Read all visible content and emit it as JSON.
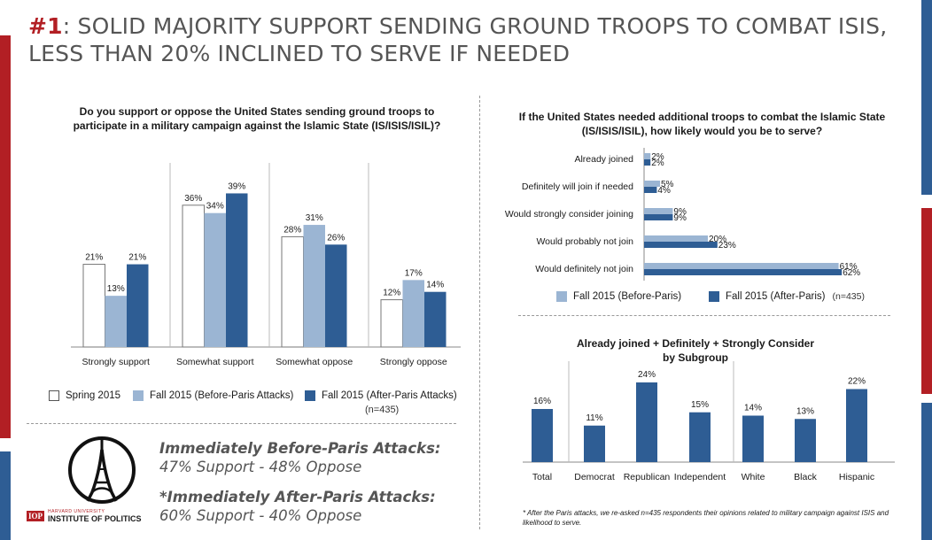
{
  "title": {
    "number": "#1",
    "text": ": SOLID MAJORITY SUPPORT SENDING GROUND TROOPS TO COMBAT ISIS, LESS THAN 20% INCLINED TO SERVE IF NEEDED"
  },
  "colors": {
    "spring": "#ffffff",
    "before": "#9bb5d3",
    "after": "#2e5d94",
    "accent_red": "#b21f24",
    "accent_blue": "#2e5d94"
  },
  "left_chart": {
    "question": "Do you support or oppose the United States sending ground troops to participate in a military campaign against the Islamic State (IS/ISIS/ISIL)?",
    "legend": {
      "spring": "Spring 2015",
      "before": "Fall 2015 (Before-Paris Attacks)",
      "after": "Fall 2015 (After-Paris Attacks)",
      "n": "(n=435)"
    }
  },
  "right_top": {
    "question": "If the United States needed additional troops to combat the Islamic State (IS/ISIS/ISIL), how likely would you be to serve?",
    "legend": {
      "before": "Fall 2015 (Before-Paris)",
      "after": "Fall 2015 (After-Paris)",
      "n": "(n=435)"
    }
  },
  "right_bottom": {
    "title_line1": "Already joined + Definitely + Strongly Consider",
    "title_line2": "by Subgroup"
  },
  "summary": {
    "before_heading": "Immediately Before-Paris Attacks:",
    "before_text": "47% Support - 48% Oppose",
    "after_heading": "*Immediately After-Paris Attacks:",
    "after_text": "60% Support - 40% Oppose"
  },
  "logo": {
    "university": "HARVARD UNIVERSITY",
    "abbr": "IOP",
    "name": "INSTITUTE OF POLITICS"
  },
  "footnote": "* After the Paris attacks, we re-asked n=435 respondents their opinions related to military campaign against ISIS and likelihood to serve.",
  "chart_data": [
    {
      "type": "bar",
      "categories": [
        "Strongly support",
        "Somewhat support",
        "Somewhat oppose",
        "Strongly oppose"
      ],
      "series": [
        {
          "name": "Spring 2015",
          "values": [
            21,
            36,
            28,
            12
          ]
        },
        {
          "name": "Fall 2015 (Before-Paris Attacks)",
          "values": [
            13,
            34,
            31,
            17
          ]
        },
        {
          "name": "Fall 2015 (After-Paris Attacks)",
          "values": [
            21,
            39,
            26,
            14
          ]
        }
      ],
      "value_labels": [
        [
          "21%",
          "36%",
          "28%",
          "12%"
        ],
        [
          "13%",
          "34%",
          "31%",
          "17%"
        ],
        [
          "21%",
          "39%",
          "26%",
          "14%"
        ]
      ],
      "ylim": [
        0,
        45
      ],
      "legend": "bottom"
    },
    {
      "type": "bar",
      "orientation": "horizontal",
      "categories": [
        "Already joined",
        "Definitely will join if needed",
        "Would strongly consider joining",
        "Would probably not join",
        "Would definitely not join"
      ],
      "series": [
        {
          "name": "Fall 2015 (Before-Paris)",
          "values": [
            2,
            5,
            9,
            20,
            61
          ]
        },
        {
          "name": "Fall 2015 (After-Paris)",
          "values": [
            2,
            4,
            9,
            23,
            62
          ]
        }
      ],
      "value_labels": [
        [
          "2%",
          "5%",
          "9%",
          "20%",
          "61%"
        ],
        [
          "2%",
          "4%",
          "9%",
          "23%",
          "62%"
        ]
      ],
      "xlim": [
        0,
        62
      ],
      "legend": "bottom"
    },
    {
      "type": "bar",
      "categories": [
        "Total",
        "Democrat",
        "Republican",
        "Independent",
        "White",
        "Black",
        "Hispanic"
      ],
      "values": [
        16,
        11,
        24,
        15,
        14,
        13,
        22
      ],
      "value_labels": [
        "16%",
        "11%",
        "24%",
        "15%",
        "14%",
        "13%",
        "22%"
      ],
      "ylim": [
        0,
        25
      ]
    }
  ]
}
